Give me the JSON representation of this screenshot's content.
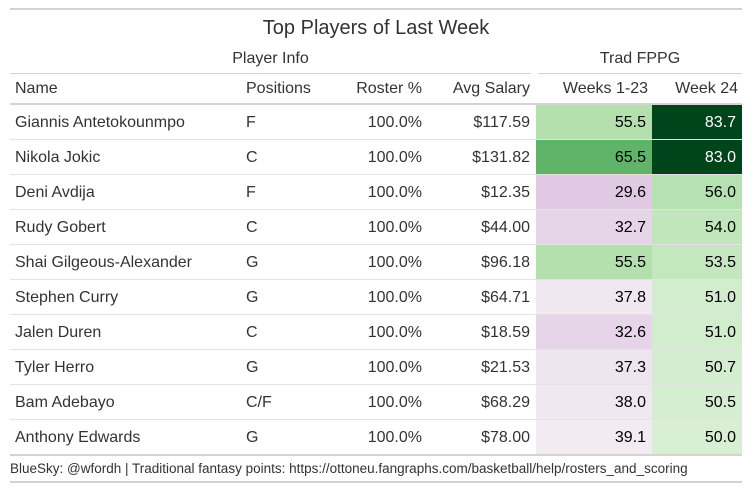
{
  "chart_data": {
    "type": "table",
    "title": "Top Players of Last Week",
    "spanners": {
      "player_info": "Player Info",
      "trad_fppg": "Trad FPPG"
    },
    "columns": {
      "name": "Name",
      "positions": "Positions",
      "roster": "Roster %",
      "salary": "Avg Salary",
      "weeks": "Weeks 1-23",
      "week24": "Week 24"
    },
    "rows": [
      {
        "name": "Giannis Antetokounmpo",
        "positions": "F",
        "roster": "100.0%",
        "salary": "$117.59",
        "weeks": "55.5",
        "week24": "83.7",
        "weeks_color": "#b4e0ae",
        "week24_color": "#00441b"
      },
      {
        "name": "Nikola Jokic",
        "positions": "C",
        "roster": "100.0%",
        "salary": "$131.82",
        "weeks": "65.5",
        "week24": "83.0",
        "weeks_color": "#5fb46a",
        "week24_color": "#00441b"
      },
      {
        "name": "Deni Avdija",
        "positions": "F",
        "roster": "100.0%",
        "salary": "$12.35",
        "weeks": "29.6",
        "week24": "56.0",
        "weeks_color": "#e0c9e3",
        "week24_color": "#b6e1b0"
      },
      {
        "name": "Rudy Gobert",
        "positions": "C",
        "roster": "100.0%",
        "salary": "$44.00",
        "weeks": "32.7",
        "week24": "54.0",
        "weeks_color": "#e6d5e8",
        "week24_color": "#c1e6bc"
      },
      {
        "name": "Shai Gilgeous-Alexander",
        "positions": "G",
        "roster": "100.0%",
        "salary": "$96.18",
        "weeks": "55.5",
        "week24": "53.5",
        "weeks_color": "#b4e0ae",
        "week24_color": "#c4e7bf"
      },
      {
        "name": "Stephen Curry",
        "positions": "G",
        "roster": "100.0%",
        "salary": "$64.71",
        "weeks": "37.8",
        "week24": "51.0",
        "weeks_color": "#f0e7f1",
        "week24_color": "#d2ecce"
      },
      {
        "name": "Jalen Duren",
        "positions": "C",
        "roster": "100.0%",
        "salary": "$18.59",
        "weeks": "32.6",
        "week24": "51.0",
        "weeks_color": "#e6d5e8",
        "week24_color": "#d2ecce"
      },
      {
        "name": "Tyler Herro",
        "positions": "G",
        "roster": "100.0%",
        "salary": "$21.53",
        "weeks": "37.3",
        "week24": "50.7",
        "weeks_color": "#efe5f0",
        "week24_color": "#d4edd0"
      },
      {
        "name": "Bam Adebayo",
        "positions": "C/F",
        "roster": "100.0%",
        "salary": "$68.29",
        "weeks": "38.0",
        "week24": "50.5",
        "weeks_color": "#f0e8f1",
        "week24_color": "#d5eed1"
      },
      {
        "name": "Anthony Edwards",
        "positions": "G",
        "roster": "100.0%",
        "salary": "$78.00",
        "weeks": "39.1",
        "week24": "50.0",
        "weeks_color": "#f2ebf2",
        "week24_color": "#d8efd4"
      }
    ],
    "footnote": "BlueSky: @wfordh | Traditional fantasy points: https://ottoneu.fangraphs.com/basketball/help/rosters_and_scoring"
  }
}
